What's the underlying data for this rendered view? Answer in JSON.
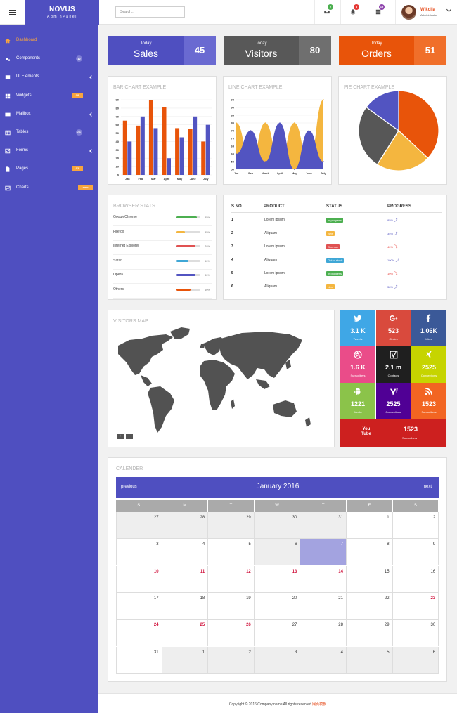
{
  "brand": {
    "title": "NOVUS",
    "subtitle": "AdminPanel"
  },
  "search": {
    "placeholder": "Search..."
  },
  "notifications": [
    {
      "icon": "envelope-icon",
      "count": "2",
      "color": "#4caf50"
    },
    {
      "icon": "bell-icon",
      "count": "3",
      "color": "#e53935"
    },
    {
      "icon": "list-icon",
      "count": "15",
      "color": "#8e44ad"
    }
  ],
  "user": {
    "name": "Wikolia",
    "role": "Administrator"
  },
  "sidebar": {
    "items": [
      {
        "label": "Dashboard",
        "icon": "home-icon",
        "active": true
      },
      {
        "label": "Components",
        "icon": "cogs-icon",
        "badge": "12",
        "badge_type": "round"
      },
      {
        "label": "UI Elements",
        "icon": "book-icon",
        "chevron": true
      },
      {
        "label": "Widgets",
        "icon": "grid-icon",
        "badge": "08",
        "badge_type": "rect"
      },
      {
        "label": "Mailbox",
        "icon": "envelope-icon",
        "chevron": true
      },
      {
        "label": "Tables",
        "icon": "table-icon",
        "badge": "05",
        "badge_type": "round"
      },
      {
        "label": "Forms",
        "icon": "check-square-icon",
        "chevron": true
      },
      {
        "label": "Pages",
        "icon": "file-icon",
        "badge": "02",
        "badge_type": "rect"
      },
      {
        "label": "Charts",
        "icon": "chart-icon",
        "badge": "new",
        "badge_type": "new"
      }
    ]
  },
  "stats": [
    {
      "small": "Today",
      "label": "Sales",
      "value": "45",
      "label_color": "#4f4fc0",
      "value_color": "#6a6ad1"
    },
    {
      "small": "Today",
      "label": "Visitors",
      "value": "80",
      "label_color": "#585858",
      "value_color": "#6f6f6f"
    },
    {
      "small": "Today",
      "label": "Orders",
      "value": "51",
      "label_color": "#e8540a",
      "value_color": "#f06f2a"
    }
  ],
  "panels": {
    "bar_title": "BAR CHART EXAMPLE",
    "line_title": "LINE CHART EXAMPLE",
    "pie_title": "PIE CHART EXAMPLE",
    "browser_title": "BROWSER STATS",
    "map_title": "VISITORS MAP",
    "calendar_title": "CALENDER"
  },
  "chart_data": [
    {
      "type": "bar",
      "title": "BAR CHART EXAMPLE",
      "categories": [
        "Jan",
        "Feb",
        "Mar",
        "April",
        "May",
        "June",
        "July"
      ],
      "series": [
        {
          "values": [
            65,
            59,
            90,
            81,
            56,
            55,
            40
          ],
          "color": "#e8540a"
        },
        {
          "values": [
            40,
            70,
            56,
            20,
            45,
            70,
            60
          ],
          "color": "#5254c1"
        }
      ],
      "yticks": [
        0,
        10,
        20,
        30,
        40,
        50,
        60,
        70,
        80,
        90
      ],
      "ylim": [
        0,
        90
      ]
    },
    {
      "type": "area",
      "title": "LINE CHART EXAMPLE",
      "categories": [
        "Jan",
        "Feb",
        "March",
        "April",
        "May",
        "June",
        "July"
      ],
      "series": [
        {
          "values": [
            80,
            55,
            80,
            55,
            80,
            55,
            95
          ],
          "color": "#f4b63f"
        },
        {
          "values": [
            60,
            75,
            55,
            80,
            50,
            75,
            55
          ],
          "color": "#5254c1"
        }
      ],
      "yticks": [
        50,
        55,
        60,
        65,
        70,
        75,
        80,
        85,
        90,
        95
      ],
      "ylim": [
        50,
        95
      ]
    },
    {
      "type": "pie",
      "title": "PIE CHART EXAMPLE",
      "slices": [
        {
          "value": 37,
          "color": "#e8540a"
        },
        {
          "value": 22,
          "color": "#f4b63f"
        },
        {
          "value": 26,
          "color": "#575757"
        },
        {
          "value": 15,
          "color": "#5254c1"
        }
      ]
    }
  ],
  "browsers": [
    {
      "name": "GoogleChrome",
      "percent": 85,
      "label": "85%",
      "color": "#4caf50"
    },
    {
      "name": "Firefox",
      "percent": 35,
      "label": "35%",
      "color": "#f4b63f"
    },
    {
      "name": "Internet Explorer",
      "percent": 78,
      "label": "78%",
      "color": "#e05252"
    },
    {
      "name": "Safari",
      "percent": 50,
      "label": "50%",
      "color": "#3fa7d6"
    },
    {
      "name": "Opera",
      "percent": 80,
      "label": "80%",
      "color": "#5254c1"
    },
    {
      "name": "Others",
      "percent": 60,
      "label": "60%",
      "color": "#e8540a"
    }
  ],
  "product_table": {
    "headers": [
      "S.NO",
      "PRODUCT",
      "STATUS",
      "PROGRESS"
    ],
    "rows": [
      {
        "sno": "1",
        "product": "Lorem ipsum",
        "status": "In progress",
        "status_color": "#4caf50",
        "progress": "85%",
        "progress_color": "#5254c1",
        "arrow": "up-arrow-icon"
      },
      {
        "sno": "2",
        "product": "Aliquam",
        "status": "New",
        "status_color": "#f4b63f",
        "progress": "35%",
        "progress_color": "#5254c1",
        "arrow": "up-arrow-icon"
      },
      {
        "sno": "3",
        "product": "Lorem ipsum",
        "status": "Overdue",
        "status_color": "#e05252",
        "progress": "40%",
        "progress_color": "#e53935",
        "arrow": "down-arrow-icon"
      },
      {
        "sno": "4",
        "product": "Aliquam",
        "status": "Out of stock",
        "status_color": "#3fa7d6",
        "progress": "100%",
        "progress_color": "#5254c1",
        "arrow": "up-arrow-icon"
      },
      {
        "sno": "5",
        "product": "Lorem ipsum",
        "status": "In progress",
        "status_color": "#4caf50",
        "progress": "10%",
        "progress_color": "#e53935",
        "arrow": "down-arrow-icon"
      },
      {
        "sno": "6",
        "product": "Aliquam",
        "status": "New",
        "status_color": "#f4b63f",
        "progress": "38%",
        "progress_color": "#5254c1",
        "arrow": "up-arrow-icon"
      }
    ]
  },
  "map_controls": {
    "zoom_in": "+",
    "zoom_out": "−"
  },
  "social": [
    {
      "icon": "twitter-icon",
      "value": "3.1 K",
      "label": "Tweets",
      "color": "#3fa7e6"
    },
    {
      "icon": "google-plus-icon",
      "value": "523",
      "label": "Circles",
      "color": "#d94a3d"
    },
    {
      "icon": "facebook-icon",
      "value": "1.06K",
      "label": "Likes",
      "color": "#3b5998"
    },
    {
      "icon": "dribbble-icon",
      "value": "1.6 K",
      "label": "Subscribers",
      "color": "#ea4c89"
    },
    {
      "icon": "vine-icon",
      "value": "2.1 m",
      "label": "Contacts",
      "color": "#1f1f1f"
    },
    {
      "icon": "xing-icon",
      "value": "2525",
      "label": "Connections",
      "color": "#c6d400"
    },
    {
      "icon": "android-icon",
      "value": "1221",
      "label": "Media",
      "color": "#8bc34a"
    },
    {
      "icon": "yahoo-icon",
      "value": "2525",
      "label": "Connections",
      "color": "#500095"
    },
    {
      "icon": "rss-icon",
      "value": "1523",
      "label": "Subscribers",
      "color": "#f26522"
    },
    {
      "icon": "youtube-icon",
      "icon_text": "You Tube",
      "value": "1523",
      "label": "Subscribers",
      "color": "#cd201f"
    }
  ],
  "calendar": {
    "prev": "previous",
    "next": "next",
    "month": "January 2016",
    "days": [
      "S",
      "M",
      "T",
      "W",
      "T",
      "F",
      "S"
    ],
    "weeks": [
      [
        {
          "d": "27",
          "o": 1
        },
        {
          "d": "28",
          "o": 1
        },
        {
          "d": "29",
          "o": 1
        },
        {
          "d": "30",
          "o": 1
        },
        {
          "d": "31",
          "o": 1
        },
        {
          "d": "1"
        },
        {
          "d": "2"
        }
      ],
      [
        {
          "d": "3"
        },
        {
          "d": "4"
        },
        {
          "d": "5"
        },
        {
          "d": "6",
          "o": 1
        },
        {
          "d": "7",
          "t": 1
        },
        {
          "d": "8"
        },
        {
          "d": "9"
        }
      ],
      [
        {
          "d": "10",
          "r": 1
        },
        {
          "d": "11",
          "r": 1
        },
        {
          "d": "12",
          "r": 1
        },
        {
          "d": "13",
          "r": 1
        },
        {
          "d": "14",
          "r": 1
        },
        {
          "d": "15"
        },
        {
          "d": "16"
        }
      ],
      [
        {
          "d": "17"
        },
        {
          "d": "18"
        },
        {
          "d": "19"
        },
        {
          "d": "20"
        },
        {
          "d": "21"
        },
        {
          "d": "22"
        },
        {
          "d": "23",
          "r": 1
        }
      ],
      [
        {
          "d": "24",
          "r": 1
        },
        {
          "d": "25",
          "r": 1
        },
        {
          "d": "26",
          "r": 1
        },
        {
          "d": "27"
        },
        {
          "d": "28"
        },
        {
          "d": "29"
        },
        {
          "d": "30"
        }
      ],
      [
        {
          "d": "31"
        },
        {
          "d": "1",
          "o": 1
        },
        {
          "d": "2",
          "o": 1
        },
        {
          "d": "3",
          "o": 1
        },
        {
          "d": "4",
          "o": 1
        },
        {
          "d": "5",
          "o": 1
        },
        {
          "d": "6",
          "o": 1
        }
      ]
    ]
  },
  "footer": {
    "text": "Copyright © 2016.Company name All rights reserved.",
    "link": "网页模板"
  }
}
